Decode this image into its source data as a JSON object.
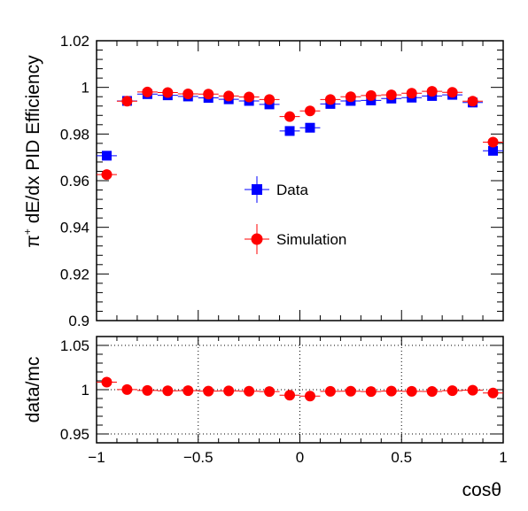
{
  "chart_data": [
    {
      "type": "scatter",
      "title": "",
      "ylabel_html": "π",
      "ylabel_sup": "+",
      "ylabel_rest": " dE/dx PID Efficiency",
      "xlim": [
        -1,
        1
      ],
      "ylim": [
        0.9,
        1.02
      ],
      "y_ticks": [
        0.9,
        0.92,
        0.94,
        0.96,
        0.98,
        1,
        1.02
      ],
      "y_tick_labels": [
        "0.9",
        "0.92",
        "0.94",
        "0.96",
        "0.98",
        "1",
        "1.02"
      ],
      "legend": [
        {
          "name": "Data",
          "color": "#0000ff",
          "marker": "square"
        },
        {
          "name": "Simulation",
          "color": "#ff0000",
          "marker": "circle"
        }
      ],
      "x": [
        -0.95,
        -0.85,
        -0.75,
        -0.65,
        -0.55,
        -0.45,
        -0.35,
        -0.25,
        -0.15,
        -0.05,
        0.05,
        0.15,
        0.25,
        0.35,
        0.45,
        0.55,
        0.65,
        0.75,
        0.85,
        0.95
      ],
      "series": [
        {
          "name": "Data",
          "color": "#0000ff",
          "values": [
            0.9707,
            0.9942,
            0.9971,
            0.9966,
            0.9961,
            0.9955,
            0.9949,
            0.9942,
            0.9927,
            0.9813,
            0.9827,
            0.9929,
            0.9942,
            0.9944,
            0.9952,
            0.9956,
            0.9963,
            0.9968,
            0.9935,
            0.9728
          ]
        },
        {
          "name": "Simulation",
          "color": "#ff0000",
          "values": [
            0.9626,
            0.9941,
            0.998,
            0.9978,
            0.9972,
            0.9971,
            0.9963,
            0.9959,
            0.9948,
            0.9875,
            0.9899,
            0.9948,
            0.996,
            0.9965,
            0.9968,
            0.9975,
            0.9983,
            0.9979,
            0.9941,
            0.9765
          ]
        }
      ]
    },
    {
      "type": "scatter",
      "title": "",
      "xlabel": "cosθ",
      "ylabel": "data/mc",
      "xlim": [
        -1,
        1
      ],
      "ylim": [
        0.94,
        1.06
      ],
      "grid": true,
      "y_ticks": [
        0.95,
        1,
        1.05
      ],
      "y_tick_labels": [
        "0.95",
        "1",
        "1.05"
      ],
      "x_ticks": [
        -1,
        -0.5,
        0,
        0.5,
        1
      ],
      "x_tick_labels": [
        "−1",
        "−0.5",
        "0",
        "0.5",
        "1"
      ],
      "x": [
        -0.95,
        -0.85,
        -0.75,
        -0.65,
        -0.55,
        -0.45,
        -0.35,
        -0.25,
        -0.15,
        -0.05,
        0.05,
        0.15,
        0.25,
        0.35,
        0.45,
        0.55,
        0.65,
        0.75,
        0.85,
        0.95
      ],
      "series": [
        {
          "name": "",
          "color": "#ff0000",
          "values": [
            1.0085,
            1.0001,
            0.9991,
            0.9988,
            0.9989,
            0.9984,
            0.9986,
            0.9983,
            0.9979,
            0.9938,
            0.9928,
            0.9981,
            0.9982,
            0.9979,
            0.9984,
            0.9981,
            0.998,
            0.9989,
            0.9994,
            0.9963
          ]
        }
      ]
    }
  ]
}
